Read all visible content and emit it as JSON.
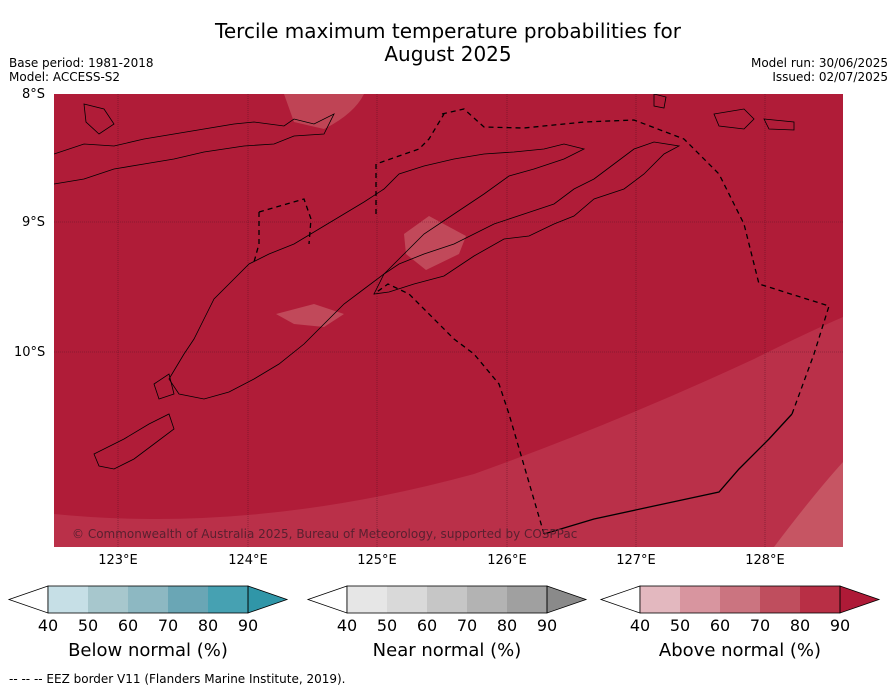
{
  "title_line1": "Tercile maximum temperature probabilities for",
  "title_line2": "August 2025",
  "base_period": "Base period: 1981-2018",
  "model": "Model: ACCESS-S2",
  "model_run": "Model run: 30/06/2025",
  "issued": "Issued: 02/07/2025",
  "lat_labels": [
    "8°S",
    "9°S",
    "10°S"
  ],
  "lon_labels": [
    "123°E",
    "124°E",
    "125°E",
    "126°E",
    "127°E",
    "128°E"
  ],
  "copyright": "© Commonwealth of Australia 2025, Bureau of Meteorology, supported by COSPPac",
  "colorbars": [
    {
      "title": "Below normal (%)",
      "ticks": [
        "40",
        "50",
        "60",
        "70",
        "80",
        "90"
      ],
      "colors": [
        "#ffffff",
        "#c6dfe6",
        "#a7c7cd",
        "#8db8c2",
        "#6aa6b5",
        "#46a1b2",
        "#3096a8"
      ]
    },
    {
      "title": "Near normal (%)",
      "ticks": [
        "40",
        "50",
        "60",
        "70",
        "80",
        "90"
      ],
      "colors": [
        "#ffffff",
        "#e6e6e6",
        "#d9d9d9",
        "#c6c6c6",
        "#b3b3b3",
        "#a0a0a0",
        "#8a8a8a"
      ]
    },
    {
      "title": "Above normal (%)",
      "ticks": [
        "40",
        "50",
        "60",
        "70",
        "80",
        "90"
      ],
      "colors": [
        "#ffffff",
        "#e3b8bf",
        "#d8959f",
        "#cb7480",
        "#bf4e5e",
        "#b82f45",
        "#ae1a37"
      ]
    }
  ],
  "footer": "--  --  -- EEZ border V11 (Flanders Marine Institute, 2019).",
  "map_colors": {
    "dominant": "#b01c38",
    "secondary": "#ba3049",
    "light": "#c65563"
  }
}
